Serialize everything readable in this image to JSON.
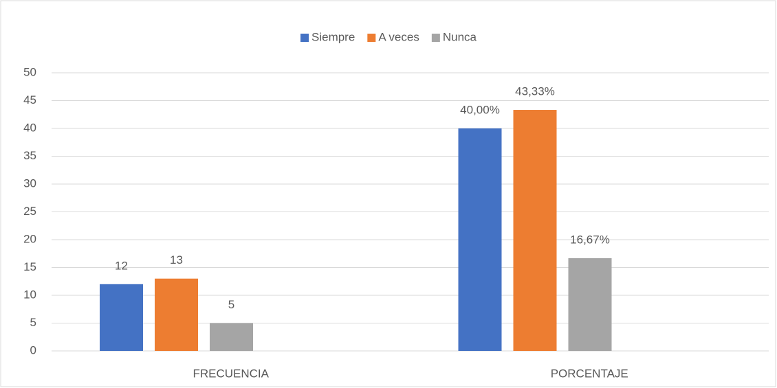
{
  "chart_data": {
    "type": "bar",
    "categories": [
      "FRECUENCIA",
      "PORCENTAJE"
    ],
    "series": [
      {
        "name": "Siempre",
        "color": "#4472c4",
        "values": [
          12,
          40
        ],
        "value_labels": [
          "12",
          "40,00%"
        ]
      },
      {
        "name": "A veces",
        "color": "#ed7d31",
        "values": [
          13,
          43.33
        ],
        "value_labels": [
          "13",
          "43,33%"
        ]
      },
      {
        "name": "Nunca",
        "color": "#a5a5a5",
        "values": [
          5,
          16.67
        ],
        "value_labels": [
          "5",
          "16,67%"
        ]
      }
    ],
    "ylim": [
      0,
      50
    ],
    "yticks": [
      0,
      5,
      10,
      15,
      20,
      25,
      30,
      35,
      40,
      45,
      50
    ],
    "grid": true,
    "legend": "top"
  }
}
